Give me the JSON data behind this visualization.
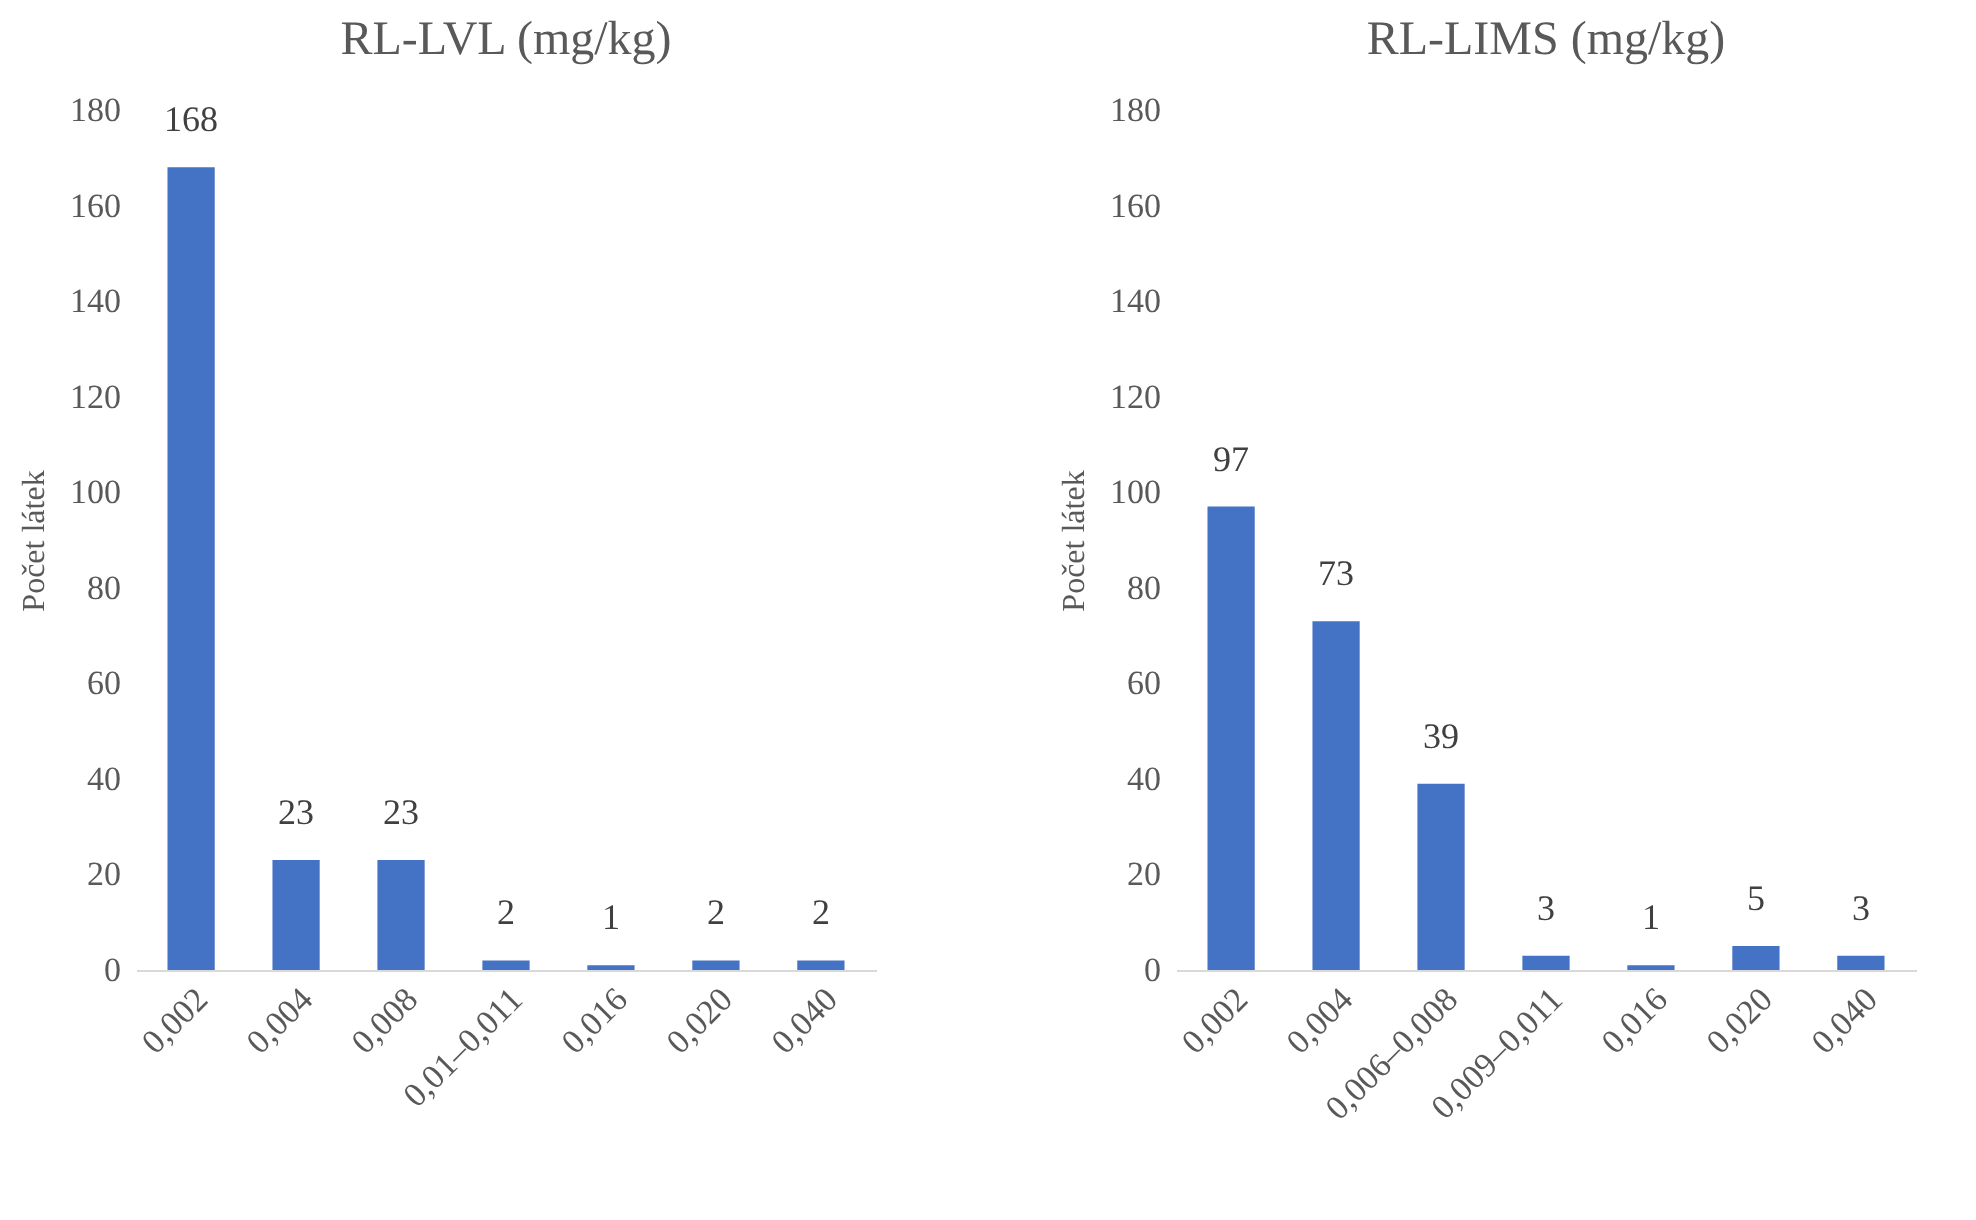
{
  "chart_data": [
    {
      "type": "bar",
      "title": "RL-LVL  (mg/kg)",
      "ylabel": "Počet látek",
      "categories": [
        "0,002",
        "0,004",
        "0,008",
        "0,01–0,011",
        "0,016",
        "0,020",
        "0,040"
      ],
      "values": [
        168,
        23,
        23,
        2,
        1,
        2,
        2
      ],
      "color": "#4472c4",
      "ylim": [
        0,
        180
      ],
      "yticks": [
        0,
        20,
        40,
        60,
        80,
        100,
        120,
        140,
        160,
        180
      ],
      "data_labels": true
    },
    {
      "type": "bar",
      "title": "RL-LIMS (mg/kg)",
      "ylabel": "Počet látek",
      "categories": [
        "0,002",
        "0,004",
        "0,006–0,008",
        "0,009–0,011",
        "0,016",
        "0,020",
        "0,040"
      ],
      "values": [
        97,
        73,
        39,
        3,
        1,
        5,
        3
      ],
      "color": "#4472c4",
      "ylim": [
        0,
        180
      ],
      "yticks": [
        0,
        20,
        40,
        60,
        80,
        100,
        120,
        140,
        160,
        180
      ],
      "data_labels": true
    }
  ]
}
